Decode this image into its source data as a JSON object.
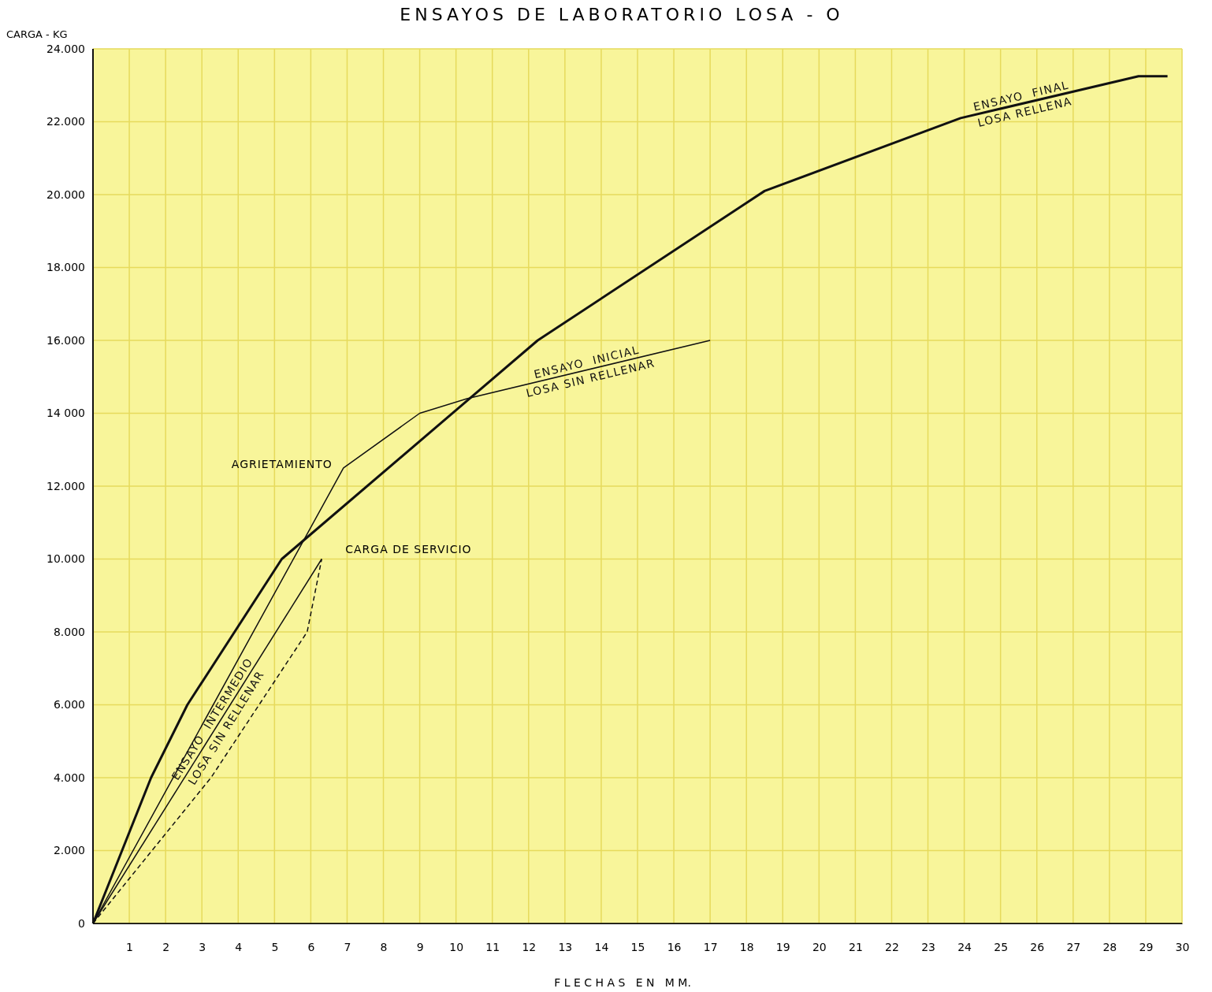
{
  "chart_data": {
    "type": "line",
    "title": "ENSAYOS DE LABORATORIO LOSA - O",
    "xlabel": "F L E C H A S   E N   M M.",
    "ylabel": "CARGA - KG",
    "xlim": [
      0,
      30
    ],
    "xticks": [
      1,
      2,
      3,
      4,
      5,
      6,
      7,
      8,
      9,
      10,
      11,
      12,
      13,
      14,
      15,
      16,
      17,
      18,
      19,
      20,
      21,
      22,
      23,
      24,
      25,
      26,
      27,
      28,
      29,
      30
    ],
    "ylim": [
      0,
      24000
    ],
    "yticks": [
      0,
      {
        "value": 2000,
        "label": "2.000"
      },
      {
        "value": 4000,
        "label": "4.000"
      },
      {
        "value": 6000,
        "label": "6.000"
      },
      {
        "value": 8000,
        "label": "8.000"
      },
      {
        "value": 10000,
        "label": "10.000"
      },
      {
        "value": 12000,
        "label": "12.000"
      },
      {
        "value": 14000,
        "label": "14 000"
      },
      {
        "value": 16000,
        "label": "16.000"
      },
      {
        "value": 18000,
        "label": "18.000"
      },
      {
        "value": 20000,
        "label": "20.000"
      },
      {
        "value": 22000,
        "label": "22.000"
      },
      {
        "value": 24000,
        "label": "24.000"
      }
    ],
    "grid": true,
    "series": [
      {
        "name": "ENSAYO  FINAL\nLOSA RELLENA",
        "color": "#111111",
        "line_style": "solid",
        "x": [
          0,
          1.6,
          2.6,
          5.2,
          12.25,
          18.5,
          23.9,
          28.8,
          29.6
        ],
        "values": [
          0,
          4000,
          6000,
          10000,
          16000,
          20100,
          22100,
          23250,
          23250
        ]
      },
      {
        "name": "ENSAYO  INICIAL\nLOSA SIN RELLENAR",
        "color": "#111111",
        "line_style": "solid",
        "x": [
          0,
          6.9,
          9,
          10.3,
          17
        ],
        "values": [
          0,
          12500,
          14000,
          14400,
          16000
        ]
      },
      {
        "name": "ENSAYO  INTERMEDIO\nLOSA SIN RELLENAR",
        "color": "#111111",
        "line_style": "solid",
        "x": [
          0,
          6.3
        ],
        "values": [
          0,
          10000
        ]
      },
      {
        "color": "#111111",
        "line_style": "dashed",
        "x": [
          0,
          3.25,
          5.9,
          6.3
        ],
        "values": [
          0,
          4000,
          8000,
          10000
        ]
      }
    ],
    "annotations": [
      {
        "text": "AGRIETAMIENTO",
        "x": 6.9,
        "y": 12500
      },
      {
        "text": "CARGA DE SERVICIO",
        "x": 6.3,
        "y": 10000
      }
    ]
  }
}
